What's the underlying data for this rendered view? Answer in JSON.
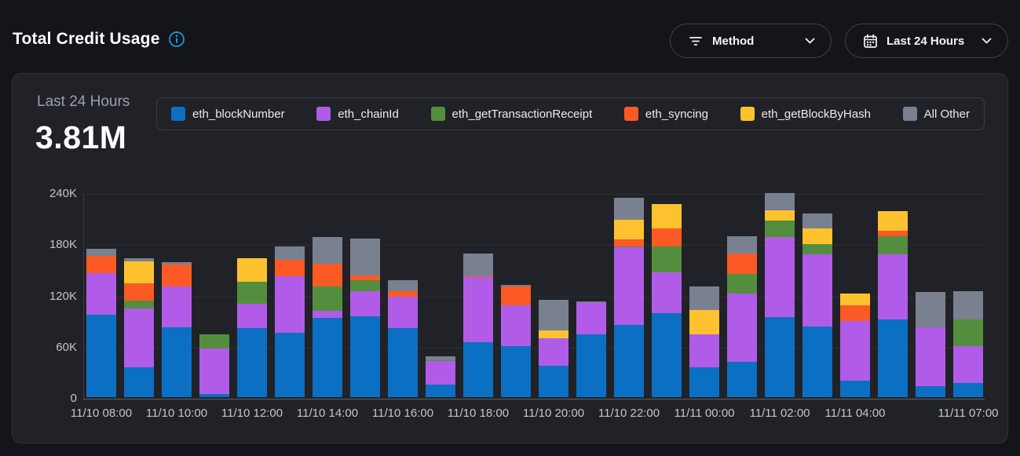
{
  "header": {
    "title": "Total Credit Usage",
    "filters": {
      "method": {
        "label": "Method",
        "icon": "filter-icon"
      },
      "time_range": {
        "label": "Last 24 Hours",
        "icon": "calendar-icon"
      }
    }
  },
  "summary": {
    "period_label": "Last 24 Hours",
    "total_value": "3.81M"
  },
  "chart_data": {
    "type": "bar",
    "stacked": true,
    "title": "Total Credit Usage",
    "unit": "K credits",
    "legend_position": "top",
    "grid": "horizontal",
    "ylim_k": [
      0,
      240
    ],
    "yticks": [
      {
        "label": "0",
        "value": 0
      },
      {
        "label": "60K",
        "value": 60
      },
      {
        "label": "120K",
        "value": 120
      },
      {
        "label": "180K",
        "value": 180
      },
      {
        "label": "240K",
        "value": 240
      }
    ],
    "categories": [
      "11/10 08:00",
      "11/10 09:00",
      "11/10 10:00",
      "11/10 11:00",
      "11/10 12:00",
      "11/10 13:00",
      "11/10 14:00",
      "11/10 15:00",
      "11/10 16:00",
      "11/10 17:00",
      "11/10 18:00",
      "11/10 19:00",
      "11/10 20:00",
      "11/10 21:00",
      "11/10 22:00",
      "11/10 23:00",
      "11/11 00:00",
      "11/11 01:00",
      "11/11 02:00",
      "11/11 03:00",
      "11/11 04:00",
      "11/11 05:00",
      "11/11 06:00",
      "11/11 07:00"
    ],
    "xtick_labels": [
      {
        "index": 0,
        "label": "11/10 08:00"
      },
      {
        "index": 2,
        "label": "11/10 10:00"
      },
      {
        "index": 4,
        "label": "11/10 12:00"
      },
      {
        "index": 6,
        "label": "11/10 14:00"
      },
      {
        "index": 8,
        "label": "11/10 16:00"
      },
      {
        "index": 10,
        "label": "11/10 18:00"
      },
      {
        "index": 12,
        "label": "11/10 20:00"
      },
      {
        "index": 14,
        "label": "11/10 22:00"
      },
      {
        "index": 16,
        "label": "11/11 00:00"
      },
      {
        "index": 18,
        "label": "11/11 02:00"
      },
      {
        "index": 20,
        "label": "11/11 04:00"
      },
      {
        "index": 23,
        "label": "11/11 07:00"
      }
    ],
    "series": [
      {
        "name": "eth_blockNumber",
        "color": "#0b6fc3",
        "values": [
          97,
          35,
          82,
          4,
          81,
          75,
          93,
          95,
          81,
          15,
          64,
          60,
          37,
          74,
          85,
          98,
          35,
          41,
          94,
          83,
          19,
          91,
          13,
          17
        ]
      },
      {
        "name": "eth_chainId",
        "color": "#b15ce8",
        "values": [
          48,
          69,
          48,
          53,
          28,
          67,
          8,
          29,
          37,
          27,
          77,
          48,
          32,
          37,
          91,
          48,
          39,
          80,
          94,
          84,
          70,
          76,
          69,
          43
        ]
      },
      {
        "name": "eth_getTransactionReceipt",
        "color": "#538e3f",
        "values": [
          0,
          9,
          0,
          17,
          26,
          0,
          29,
          13,
          0,
          1,
          0,
          0,
          0,
          1,
          1,
          31,
          0,
          23,
          19,
          12,
          0,
          22,
          0,
          31
        ]
      },
      {
        "name": "eth_syncing",
        "color": "#fb5a25",
        "values": [
          21,
          20,
          25,
          0,
          0,
          19,
          26,
          6,
          6,
          0,
          1,
          22,
          0,
          0,
          8,
          21,
          0,
          24,
          0,
          0,
          19,
          6,
          0,
          0
        ]
      },
      {
        "name": "eth_getBlockByHash",
        "color": "#fec22f",
        "values": [
          0,
          26,
          0,
          0,
          28,
          0,
          0,
          0,
          0,
          0,
          0,
          0,
          9,
          0,
          23,
          28,
          28,
          0,
          12,
          19,
          13,
          23,
          0,
          0
        ]
      },
      {
        "name": "All Other",
        "color": "#798090",
        "values": [
          8,
          4,
          3,
          0,
          0,
          16,
          32,
          43,
          13,
          5,
          26,
          2,
          36,
          0,
          26,
          0,
          28,
          21,
          20,
          17,
          0,
          0,
          41,
          33
        ]
      }
    ]
  },
  "colors": {
    "page_bg": "#13151a",
    "card_bg": "#202227",
    "accent_info": "#1e9ae8",
    "muted_text": "#9aa1ab",
    "tick_text": "#c2c6cc"
  }
}
